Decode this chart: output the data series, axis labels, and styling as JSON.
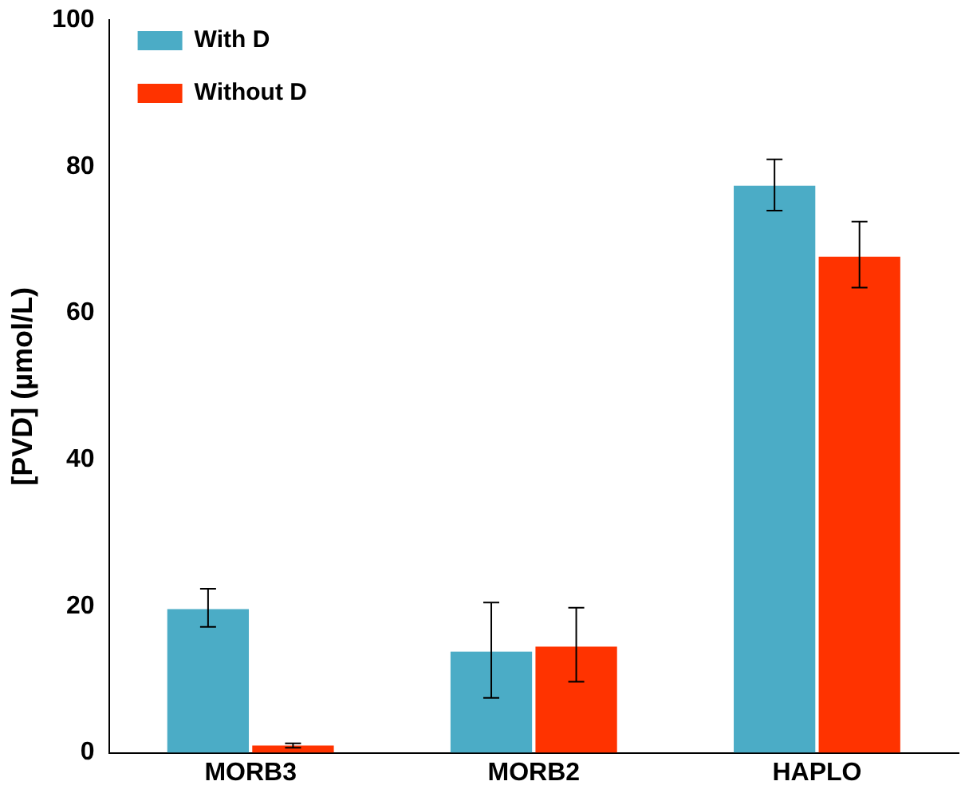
{
  "chart_data": {
    "type": "bar",
    "ylabel": "[PVD] (µmol/L)",
    "categories": [
      "MORB3",
      "MORB2",
      "HAPLO"
    ],
    "series": [
      {
        "name": "With D",
        "color": "#4bacc6",
        "values": [
          19.6,
          13.8,
          77.4
        ],
        "errors": [
          [
            17.2,
            22.4
          ],
          [
            7.5,
            20.5
          ],
          [
            74,
            81
          ]
        ]
      },
      {
        "name": "Without D",
        "color": "#ff3300",
        "values": [
          1,
          14.5,
          67.7
        ],
        "errors": [
          [
            0.7,
            1.3
          ],
          [
            9.7,
            19.8
          ],
          [
            63.5,
            72.5
          ]
        ]
      }
    ],
    "ylim": [
      0,
      100
    ],
    "yticks": [
      0,
      20,
      40,
      60,
      80,
      100
    ],
    "grid": false,
    "legend": "top left"
  }
}
